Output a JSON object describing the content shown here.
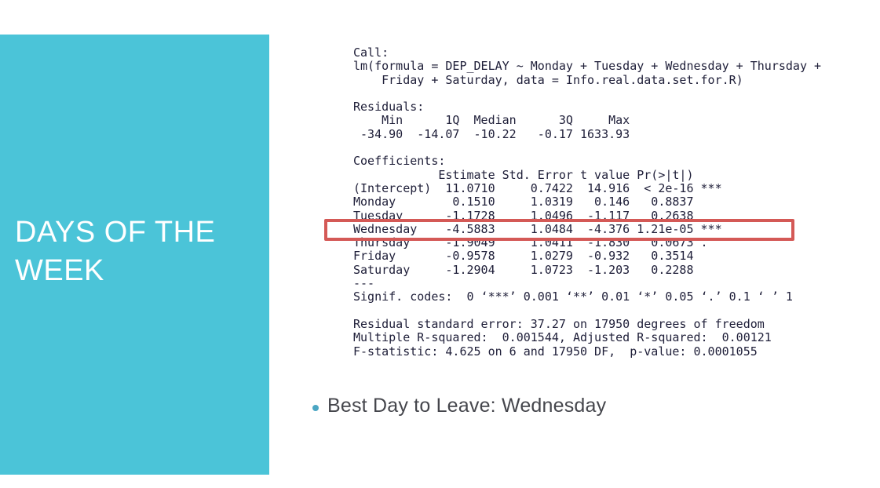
{
  "slide": {
    "accent_color": "#4bc4d8",
    "highlight_color": "#d45956",
    "title": "DAYS OF THE\nWEEK"
  },
  "r_output": {
    "lines": [
      "Call:",
      "lm(formula = DEP_DELAY ~ Monday + Tuesday + Wednesday + Thursday +",
      "    Friday + Saturday, data = Info.real.data.set.for.R)",
      "",
      "Residuals:",
      "    Min      1Q  Median      3Q     Max",
      " -34.90  -14.07  -10.22   -0.17 1633.93",
      "",
      "Coefficients:",
      "            Estimate Std. Error t value Pr(>|t|)",
      "(Intercept)  11.0710     0.7422  14.916  < 2e-16 ***",
      "Monday        0.1510     1.0319   0.146   0.8837",
      "Tuesday      -1.1728     1.0496  -1.117   0.2638",
      "Wednesday    -4.5883     1.0484  -4.376 1.21e-05 ***",
      "Thursday     -1.9049     1.0411  -1.830   0.0673 .",
      "Friday       -0.9578     1.0279  -0.932   0.3514",
      "Saturday     -1.2904     1.0723  -1.203   0.2288",
      "---",
      "Signif. codes:  0 ‘***’ 0.001 ‘**’ 0.01 ‘*’ 0.05 ‘.’ 0.1 ‘ ’ 1",
      "",
      "Residual standard error: 37.27 on 17950 degrees of freedom",
      "Multiple R-squared:  0.001544, Adjusted R-squared:  0.00121",
      "F-statistic: 4.625 on 6 and 17950 DF,  p-value: 0.0001055"
    ],
    "highlighted_row": "Wednesday"
  },
  "bullet": {
    "text": "Best Day to Leave: Wednesday"
  }
}
